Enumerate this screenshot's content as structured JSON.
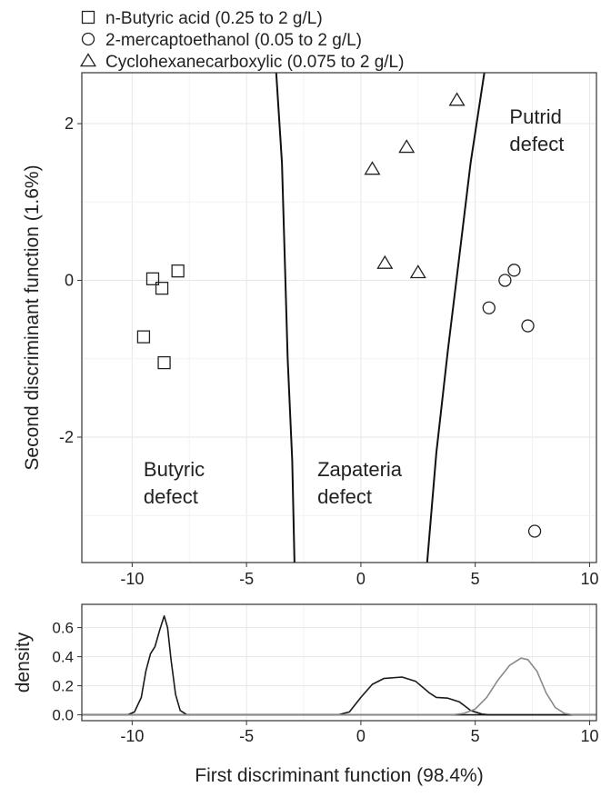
{
  "chart_data": [
    {
      "type": "scatter",
      "xlabel": "",
      "ylabel": "Second discriminant function (1.6%)",
      "xlim": [
        -12.2,
        10.3
      ],
      "ylim": [
        -3.6,
        2.65
      ],
      "xticks": [
        -10,
        -5,
        0,
        5,
        10
      ],
      "xtick_labels": [
        "-10",
        "-5",
        "0",
        "5",
        "10"
      ],
      "yticks": [
        -2,
        0,
        2
      ],
      "ytick_labels": [
        "-2",
        "0",
        "2"
      ],
      "grid": true,
      "legend_position": "top-left, outside plot",
      "series": [
        {
          "name": "n-Butyric acid (0.25 to 2 g/L)",
          "marker": "square",
          "points": [
            {
              "x": -9.1,
              "y": 0.02
            },
            {
              "x": -8.7,
              "y": -0.1
            },
            {
              "x": -8.0,
              "y": 0.12
            },
            {
              "x": -9.5,
              "y": -0.72
            },
            {
              "x": -8.6,
              "y": -1.05
            }
          ]
        },
        {
          "name": "2-mercaptoethanol (0.05 to 2 g/L)",
          "marker": "circle",
          "points": [
            {
              "x": 6.7,
              "y": 0.13
            },
            {
              "x": 6.3,
              "y": 0.0
            },
            {
              "x": 5.6,
              "y": -0.35
            },
            {
              "x": 7.3,
              "y": -0.58
            },
            {
              "x": 7.6,
              "y": -3.2
            }
          ]
        },
        {
          "name": "Cyclohexanecarboxylic (0.075 to 2 g/L)",
          "marker": "triangle",
          "points": [
            {
              "x": 4.2,
              "y": 2.3
            },
            {
              "x": 2.0,
              "y": 1.7
            },
            {
              "x": 0.5,
              "y": 1.42
            },
            {
              "x": 1.05,
              "y": 0.22
            },
            {
              "x": 2.5,
              "y": 0.1
            }
          ]
        }
      ],
      "boundaries": [
        {
          "name": "",
          "points": [
            [
              -3.7,
              2.65
            ],
            [
              -3.45,
              1.5
            ],
            [
              -3.3,
              0.0
            ],
            [
              -3.2,
              -1.0
            ],
            [
              -3.0,
              -2.3
            ],
            [
              -2.9,
              -3.6
            ]
          ]
        },
        {
          "name": "",
          "points": [
            [
              5.4,
              2.65
            ],
            [
              4.8,
              1.5
            ],
            [
              4.3,
              0.3
            ],
            [
              3.8,
              -0.9
            ],
            [
              3.3,
              -2.2
            ],
            [
              2.9,
              -3.6
            ]
          ]
        }
      ],
      "region_labels": [
        {
          "lines": [
            "Butyric",
            "defect"
          ],
          "x": -9.5,
          "y": -2.5
        },
        {
          "lines": [
            "Zapateria",
            "defect"
          ],
          "x": -1.9,
          "y": -2.5
        },
        {
          "lines": [
            "Putrid",
            "defect"
          ],
          "x": 6.5,
          "y": 2.0
        }
      ]
    },
    {
      "type": "line",
      "xlabel": "First discriminant function (98.4%)",
      "ylabel": "density",
      "xlim": [
        -12.2,
        10.3
      ],
      "ylim": [
        -0.04,
        0.76
      ],
      "xticks": [
        -10,
        -5,
        0,
        5,
        10
      ],
      "xtick_labels": [
        "-10",
        "-5",
        "0",
        "5",
        "10"
      ],
      "yticks": [
        0.0,
        0.2,
        0.4,
        0.6
      ],
      "ytick_labels": [
        "0.0",
        "0.2",
        "0.4",
        "0.6"
      ],
      "grid": true,
      "series": [
        {
          "name": "",
          "color": "#1a1a1a",
          "points": [
            [
              -12.2,
              0
            ],
            [
              -10.2,
              0
            ],
            [
              -9.9,
              0.02
            ],
            [
              -9.6,
              0.12
            ],
            [
              -9.4,
              0.3
            ],
            [
              -9.2,
              0.42
            ],
            [
              -9.0,
              0.47
            ],
            [
              -8.8,
              0.58
            ],
            [
              -8.6,
              0.68
            ],
            [
              -8.45,
              0.6
            ],
            [
              -8.3,
              0.38
            ],
            [
              -8.1,
              0.14
            ],
            [
              -7.9,
              0.03
            ],
            [
              -7.6,
              0
            ],
            [
              10.3,
              0
            ]
          ]
        },
        {
          "name": "",
          "color": "#1a1a1a",
          "points": [
            [
              -12.2,
              0
            ],
            [
              -1.0,
              0
            ],
            [
              -0.5,
              0.02
            ],
            [
              0.0,
              0.12
            ],
            [
              0.5,
              0.21
            ],
            [
              1.0,
              0.25
            ],
            [
              1.8,
              0.26
            ],
            [
              2.4,
              0.23
            ],
            [
              3.0,
              0.15
            ],
            [
              3.3,
              0.12
            ],
            [
              3.8,
              0.115
            ],
            [
              4.3,
              0.09
            ],
            [
              4.8,
              0.03
            ],
            [
              5.3,
              0.005
            ],
            [
              5.6,
              0
            ],
            [
              10.3,
              0
            ]
          ]
        },
        {
          "name": "",
          "color": "#8a8a8a",
          "points": [
            [
              -12.2,
              0
            ],
            [
              4.0,
              0
            ],
            [
              4.5,
              0.01
            ],
            [
              5.0,
              0.04
            ],
            [
              5.5,
              0.12
            ],
            [
              6.0,
              0.24
            ],
            [
              6.5,
              0.34
            ],
            [
              7.0,
              0.39
            ],
            [
              7.3,
              0.38
            ],
            [
              7.7,
              0.3
            ],
            [
              8.1,
              0.15
            ],
            [
              8.5,
              0.05
            ],
            [
              8.9,
              0.01
            ],
            [
              9.3,
              0
            ],
            [
              10.3,
              0
            ]
          ]
        }
      ]
    }
  ]
}
